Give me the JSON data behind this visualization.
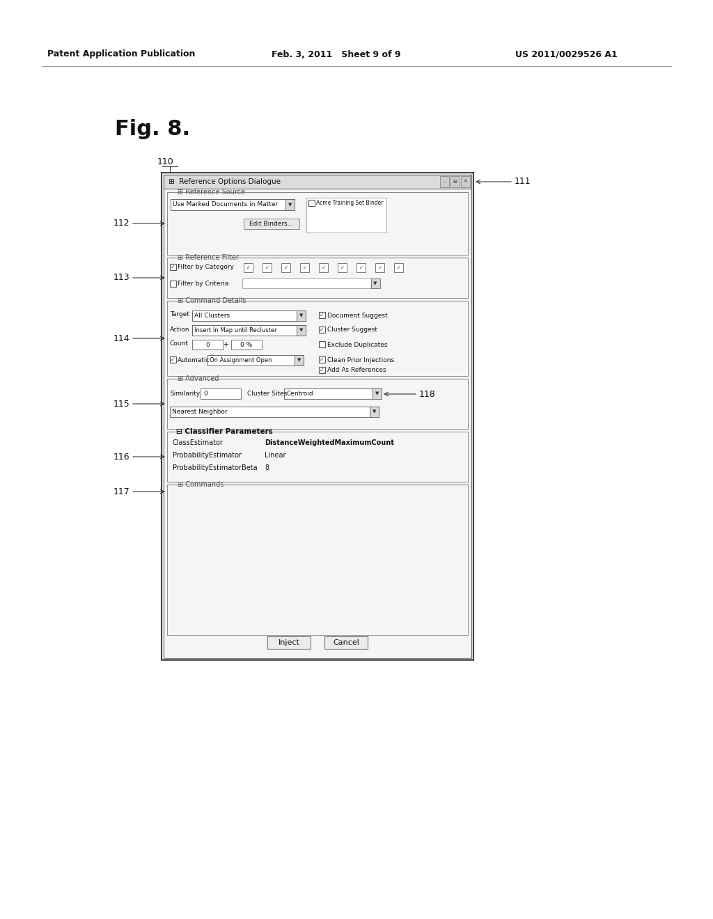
{
  "bg_color": "#ffffff",
  "header_left": "Patent Application Publication",
  "header_center": "Feb. 3, 2011   Sheet 9 of 9",
  "header_right": "US 2011/0029526 A1",
  "fig_label": "Fig. 8.",
  "label_110": "110",
  "label_111": "111",
  "label_112": "112",
  "label_113": "113",
  "label_114": "114",
  "label_115": "115",
  "label_116": "116",
  "label_117": "117",
  "label_118": "118",
  "dialog_title": "Reference Options Dialogue",
  "section_ref_source": "Reference Source",
  "section_ref_filter": "Reference Filter",
  "section_cmd_details": "Command Details",
  "section_advanced": "Advanced",
  "section_classifier": "Classifier Parameters",
  "section_commands": "Commands",
  "dropdown_use_marked": "Use Marked Documents in Matter",
  "checkbox_acme": "Acme Training Set Binder",
  "btn_edit_binders": "Edit Binders...",
  "checkbox_filter_category": "Filter by Category",
  "checkbox_filter_criteria": "Filter by Criteria",
  "label_target": "Target",
  "dropdown_all_clusters": "All Clusters",
  "cb_document_suggest": "Document Suggest",
  "label_action": "Action",
  "dropdown_insert_map": "Insert In Map until Recluster",
  "cb_cluster_suggest": "Cluster Suggest",
  "label_count": "Count",
  "count_val": "0",
  "plus_sign": "+",
  "percent_val": "0 %",
  "cb_exclude_dupl": "Exclude Duplicates",
  "cb_automatic": "Automatic",
  "dropdown_on_assign": "On Assignment Open",
  "cb_clean_prior": "Clean Prior Injections",
  "cb_add_as_ref": "Add As References",
  "label_similarity": "Similarity",
  "sim_val": "0",
  "label_cluster_sites": "Cluster Sites",
  "dropdown_centroid": "Centroid",
  "dropdown_nearest": "Nearest Neighbor",
  "classifier_params": [
    [
      "ClassEstimator",
      "DistanceWeightedMaximumCount"
    ],
    [
      "ProbabilityEstimator",
      "Linear"
    ],
    [
      "ProbabilityEstimatorBeta",
      "8"
    ]
  ],
  "btn_inject": "Inject",
  "btn_cancel": "Cancel"
}
